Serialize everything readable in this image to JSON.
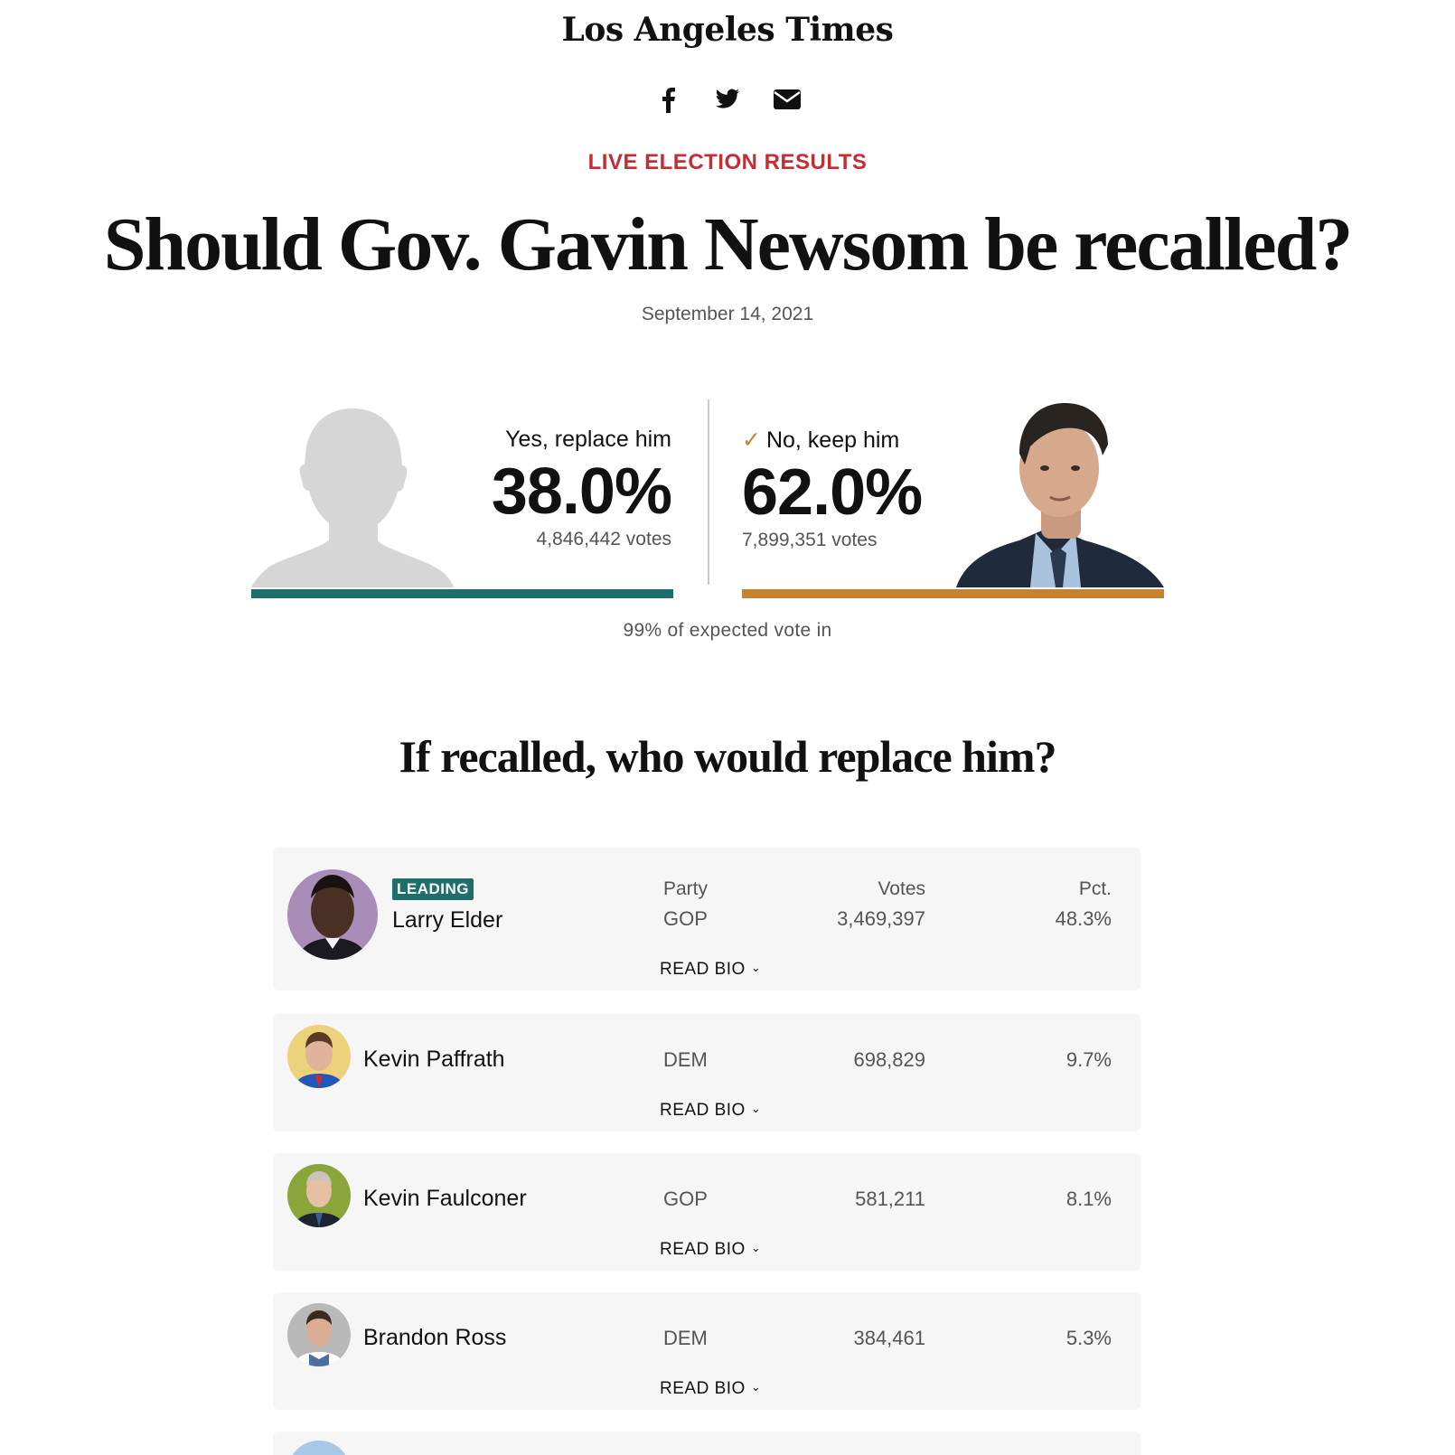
{
  "masthead": "Los Angeles Times",
  "share": {
    "facebook": "facebook-icon",
    "twitter": "twitter-icon",
    "email": "email-icon"
  },
  "kicker": "LIVE ELECTION RESULTS",
  "headline": "Should Gov. Gavin Newsom be recalled?",
  "date": "September 14, 2021",
  "recall": {
    "yes": {
      "label": "Yes, replace him",
      "pct": "38.0%",
      "pct_value": 38.0,
      "votes": "4,846,442 votes",
      "bar_color": "#1f6e6a"
    },
    "no": {
      "label": "No, keep him",
      "check": "✓",
      "pct": "62.0%",
      "pct_value": 62.0,
      "votes": "7,899,351 votes",
      "bar_color": "#c7822e"
    }
  },
  "expected": "99% of expected vote in",
  "replace_heading": "If recalled, who would replace him?",
  "table_headers": {
    "party": "Party",
    "votes": "Votes",
    "pct": "Pct."
  },
  "leading_badge": "LEADING",
  "read_bio": "READ BIO",
  "candidates": [
    {
      "name": "Larry Elder",
      "party": "GOP",
      "votes": "3,469,397",
      "pct": "48.3%",
      "avatar_bg": "#a98db8"
    },
    {
      "name": "Kevin Paffrath",
      "party": "DEM",
      "votes": "698,829",
      "pct": "9.7%",
      "avatar_bg": "#ecd27a"
    },
    {
      "name": "Kevin Faulconer",
      "party": "GOP",
      "votes": "581,211",
      "pct": "8.1%",
      "avatar_bg": "#8aa63a"
    },
    {
      "name": "Brandon Ross",
      "party": "DEM",
      "votes": "384,461",
      "pct": "5.3%",
      "avatar_bg": "#b9b9b9"
    }
  ]
}
